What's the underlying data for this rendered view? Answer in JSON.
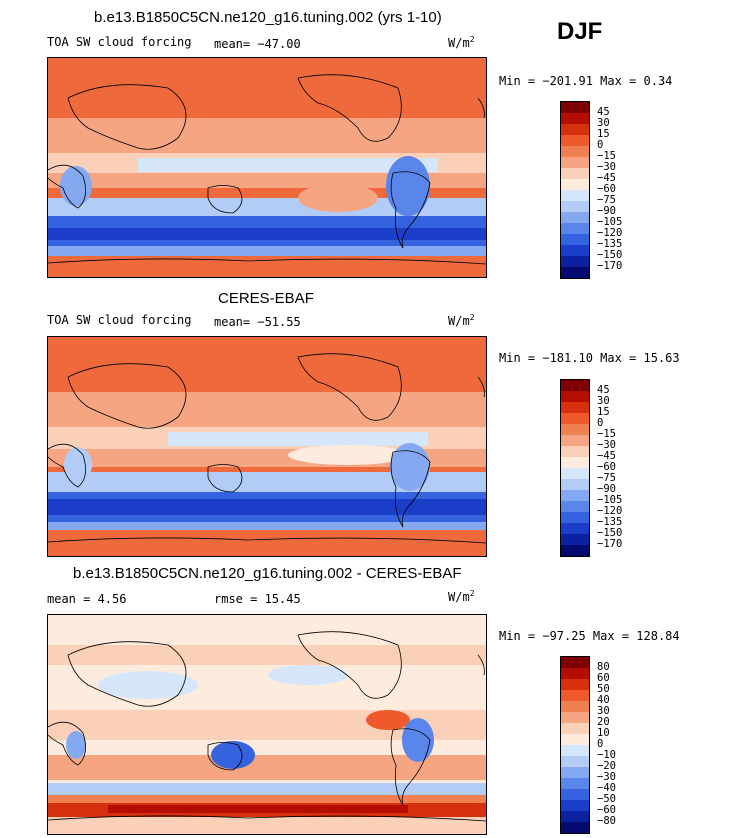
{
  "season": "DJF",
  "unit": "W/m",
  "unit_sup": "2",
  "panels": [
    {
      "title": "b.e13.B1850C5CN.ne120_g16.tuning.002 (yrs 1-10)",
      "variable": "TOA SW cloud forcing",
      "mean_text": "mean= −47.00",
      "minmax_text": "Min = −201.91 Max =   0.34",
      "colorbar_labels": [
        "45",
        "30",
        "15",
        "0",
        "−15",
        "−30",
        "−45",
        "−60",
        "−75",
        "−90",
        "−105",
        "−120",
        "−135",
        "−150",
        "−170"
      ]
    },
    {
      "title": "CERES-EBAF",
      "variable": "TOA SW cloud forcing",
      "mean_text": "mean= −51.55",
      "minmax_text": "Min = −181.10 Max =  15.63",
      "colorbar_labels": [
        "45",
        "30",
        "15",
        "0",
        "−15",
        "−30",
        "−45",
        "−60",
        "−75",
        "−90",
        "−105",
        "−120",
        "−135",
        "−150",
        "−170"
      ]
    },
    {
      "title": "b.e13.B1850C5CN.ne120_g16.tuning.002 - CERES-EBAF",
      "mean_text": "mean =   4.56",
      "rmse_text": "rmse =  15.45",
      "minmax_text": "Min = −97.25 Max = 128.84",
      "colorbar_labels": [
        "80",
        "60",
        "50",
        "40",
        "30",
        "20",
        "10",
        "0",
        "−10",
        "−20",
        "−30",
        "−40",
        "−50",
        "−60",
        "−80"
      ]
    }
  ],
  "colors": {
    "ramp": [
      "#7f0000",
      "#b30e00",
      "#d7300f",
      "#ee5a2a",
      "#f08050",
      "#f5a582",
      "#fbd0b9",
      "#fdebde",
      "#d6e6fa",
      "#b2ccf5",
      "#85a9f0",
      "#5a85ea",
      "#3563e0",
      "#1b3ec8",
      "#0b21a0",
      "#050a6e"
    ],
    "coast": "#000000"
  }
}
